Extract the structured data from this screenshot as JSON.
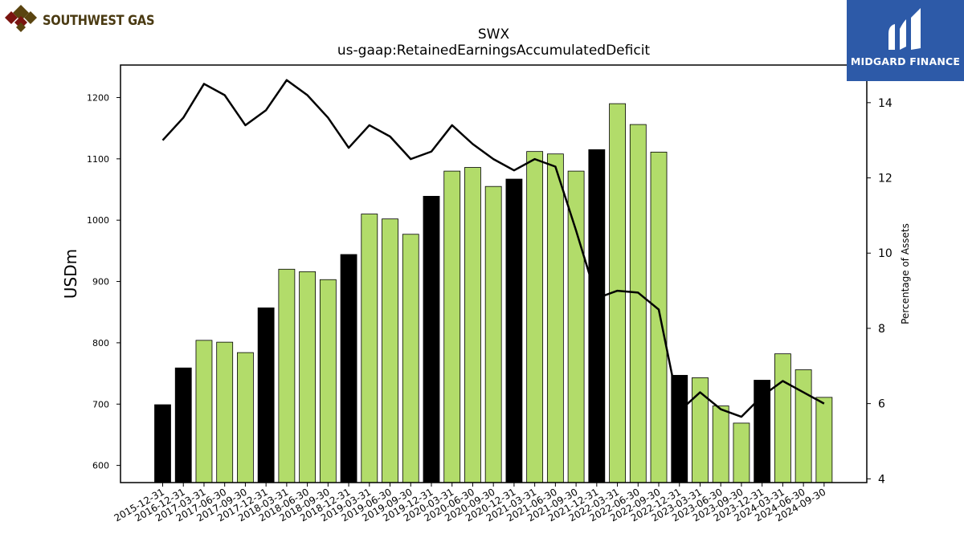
{
  "branding": {
    "company_name": "SOUTHWEST GAS",
    "publisher_name": "MIDGARD FINANCE",
    "publisher_bg_color": "#2d5aa8"
  },
  "chart_data": {
    "type": "bar",
    "title": "SWX",
    "subtitle": "us-gaap:RetainedEarningsAccumulatedDeficit",
    "ylabel": "USDm",
    "y2label": "Percentage of Assets",
    "ylim": [
      572,
      1253
    ],
    "y2lim": [
      3.9,
      15.0
    ],
    "yticks": [
      600,
      700,
      800,
      900,
      1000,
      1100,
      1200
    ],
    "y2ticks": [
      4,
      6,
      8,
      10,
      12,
      14
    ],
    "categories": [
      "2015-12-31",
      "2016-12-31",
      "2017-03-31",
      "2017-06-30",
      "2017-09-30",
      "2017-12-31",
      "2018-03-31",
      "2018-06-30",
      "2018-09-30",
      "2018-12-31",
      "2019-03-31",
      "2019-06-30",
      "2019-09-30",
      "2019-12-31",
      "2020-03-31",
      "2020-06-30",
      "2020-09-30",
      "2020-12-31",
      "2021-03-31",
      "2021-06-30",
      "2021-09-30",
      "2021-12-31",
      "2022-03-31",
      "2022-06-30",
      "2022-09-30",
      "2022-12-31",
      "2023-03-31",
      "2023-06-30",
      "2023-09-30",
      "2023-12-31",
      "2024-03-31",
      "2024-06-30",
      "2024-09-30"
    ],
    "series": [
      {
        "type": "bar",
        "values": [
          699,
          759,
          804,
          801,
          784,
          857,
          920,
          916,
          903,
          944,
          1010,
          1002,
          977,
          1039,
          1080,
          1086,
          1055,
          1067,
          1112,
          1108,
          1080,
          1115,
          1190,
          1156,
          1111,
          747,
          743,
          697,
          669,
          739,
          782,
          756,
          711
        ],
        "annual": [
          true,
          true,
          false,
          false,
          false,
          true,
          false,
          false,
          false,
          true,
          false,
          false,
          false,
          true,
          false,
          false,
          false,
          true,
          false,
          false,
          false,
          true,
          false,
          false,
          false,
          true,
          false,
          false,
          false,
          true,
          false,
          false,
          false
        ]
      },
      {
        "type": "line",
        "axis": "right",
        "values": [
          13.0,
          13.6,
          14.5,
          14.2,
          13.4,
          13.8,
          14.6,
          14.2,
          13.6,
          12.8,
          13.4,
          13.1,
          12.5,
          12.7,
          13.4,
          12.9,
          12.5,
          12.2,
          12.5,
          12.3,
          10.6,
          8.8,
          9.0,
          8.95,
          8.5,
          5.8,
          6.3,
          5.85,
          5.65,
          6.2,
          6.6,
          6.3,
          6.0
        ]
      }
    ],
    "colors": {
      "annual_bar": "#000000",
      "quarterly_bar": "#b2dc6a",
      "line": "#000000"
    },
    "grid": false,
    "legend": "none"
  }
}
